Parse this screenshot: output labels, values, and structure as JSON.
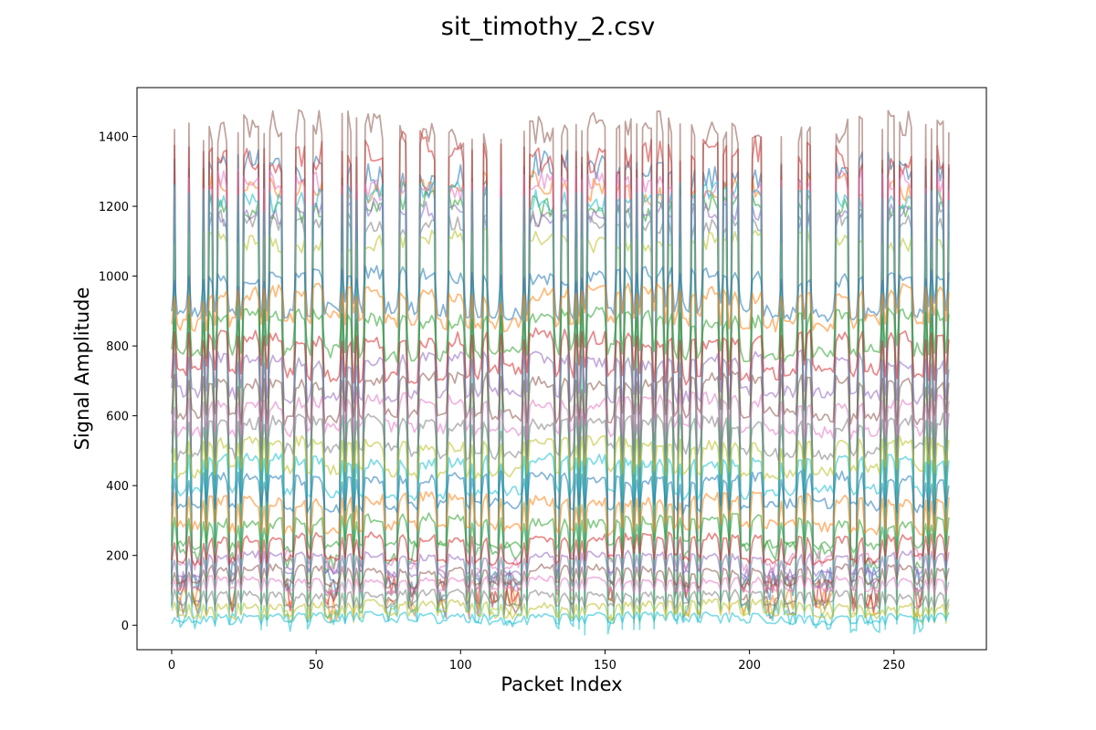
{
  "chart_data": {
    "type": "line",
    "title": "sit_timothy_2.csv",
    "xlabel": "Packet Index",
    "ylabel": "Signal Amplitude",
    "xlim": [
      -12,
      282
    ],
    "ylim": [
      -70,
      1540
    ],
    "x_ticks": [
      0,
      50,
      100,
      150,
      200,
      250
    ],
    "y_ticks": [
      0,
      200,
      400,
      600,
      800,
      1000,
      1200,
      1400
    ],
    "x_range": [
      0,
      269
    ],
    "grid": false,
    "legend": "none",
    "colors": [
      "#1f77b4",
      "#ff7f0e",
      "#2ca02c",
      "#d62728",
      "#9467bd",
      "#8c564b",
      "#e377c2",
      "#7f7f7f",
      "#bcbd22",
      "#17becf"
    ],
    "series": [
      {
        "high": 1300,
        "low": 120,
        "noise": 40
      },
      {
        "high": 1250,
        "low": 60,
        "noise": 35
      },
      {
        "high": 1200,
        "low": 200,
        "noise": 30
      },
      {
        "high": 1350,
        "low": 100,
        "noise": 45
      },
      {
        "high": 1180,
        "low": 150,
        "noise": 30
      },
      {
        "high": 1420,
        "low": 80,
        "noise": 40
      },
      {
        "high": 1260,
        "low": 180,
        "noise": 30
      },
      {
        "high": 1150,
        "low": 110,
        "noise": 25
      },
      {
        "high": 1100,
        "low": 40,
        "noise": 25
      },
      {
        "high": 1230,
        "low": 20,
        "noise": 30
      },
      {
        "high": 1000,
        "low": 900,
        "noise": 20
      },
      {
        "high": 950,
        "low": 870,
        "noise": 20
      },
      {
        "high": 880,
        "low": 780,
        "noise": 20
      },
      {
        "high": 820,
        "low": 720,
        "noise": 20
      },
      {
        "high": 760,
        "low": 660,
        "noise": 18
      },
      {
        "high": 700,
        "low": 600,
        "noise": 18
      },
      {
        "high": 640,
        "low": 560,
        "noise": 18
      },
      {
        "high": 580,
        "low": 500,
        "noise": 18
      },
      {
        "high": 520,
        "low": 440,
        "noise": 15
      },
      {
        "high": 470,
        "low": 380,
        "noise": 15
      },
      {
        "high": 420,
        "low": 340,
        "noise": 15
      },
      {
        "high": 360,
        "low": 280,
        "noise": 15
      },
      {
        "high": 300,
        "low": 230,
        "noise": 15
      },
      {
        "high": 250,
        "low": 190,
        "noise": 12
      },
      {
        "high": 200,
        "low": 150,
        "noise": 10
      },
      {
        "high": 160,
        "low": 120,
        "noise": 10
      },
      {
        "high": 130,
        "low": 100,
        "noise": 8
      },
      {
        "high": 90,
        "low": 60,
        "noise": 10
      },
      {
        "high": 60,
        "low": 30,
        "noise": 10
      },
      {
        "high": 30,
        "low": 10,
        "noise": 6
      }
    ]
  }
}
